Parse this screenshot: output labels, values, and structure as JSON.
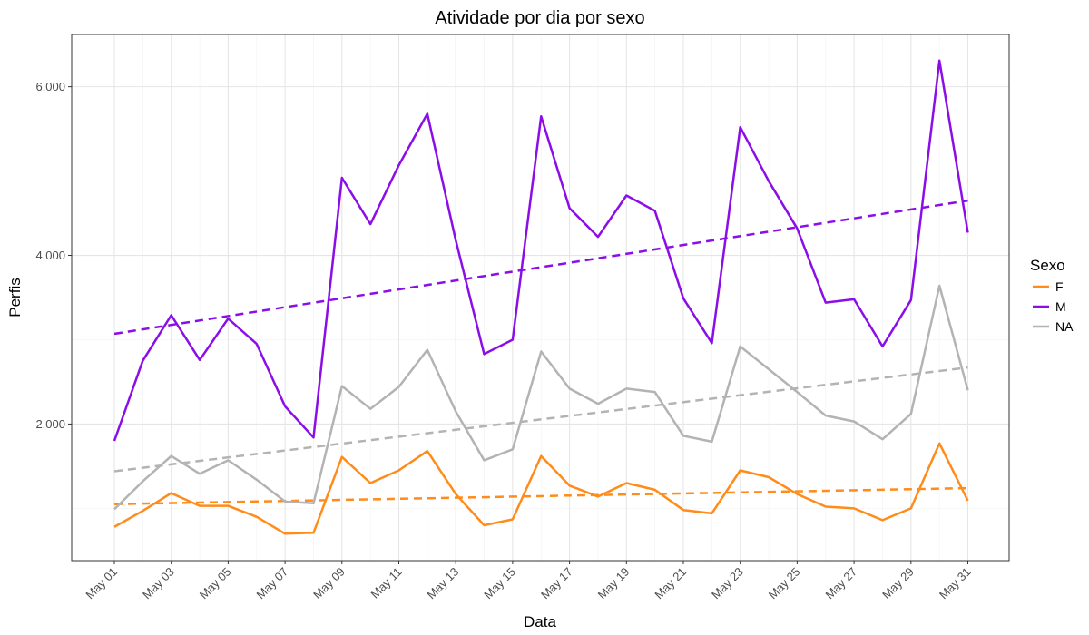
{
  "chart_data": {
    "type": "line",
    "title": "Atividade por dia por sexo",
    "xlabel": "Data",
    "ylabel": "Perfis",
    "x": [
      "May 01",
      "May 02",
      "May 03",
      "May 04",
      "May 05",
      "May 06",
      "May 07",
      "May 08",
      "May 09",
      "May 10",
      "May 11",
      "May 12",
      "May 13",
      "May 14",
      "May 15",
      "May 16",
      "May 17",
      "May 18",
      "May 19",
      "May 20",
      "May 21",
      "May 22",
      "May 23",
      "May 24",
      "May 25",
      "May 26",
      "May 27",
      "May 28",
      "May 29",
      "May 30",
      "May 31"
    ],
    "x_tick_labels": [
      "May 01",
      "May 03",
      "May 05",
      "May 07",
      "May 09",
      "May 11",
      "May 13",
      "May 15",
      "May 17",
      "May 19",
      "May 21",
      "May 23",
      "May 25",
      "May 27",
      "May 29",
      "May 31"
    ],
    "y_ticks": [
      2000,
      4000,
      6000
    ],
    "y_tick_labels": [
      "2,000",
      "4,000",
      "6,000"
    ],
    "ylim": [
      380,
      6620
    ],
    "grid": true,
    "legend": {
      "title": "Sexo",
      "position": "right"
    },
    "series": [
      {
        "name": "F",
        "color": "#ff8c1a",
        "values": [
          780,
          970,
          1180,
          1030,
          1030,
          900,
          700,
          710,
          1610,
          1300,
          1450,
          1680,
          1170,
          800,
          870,
          1620,
          1270,
          1140,
          1300,
          1220,
          980,
          940,
          1450,
          1370,
          1170,
          1020,
          1000,
          860,
          1000,
          1770,
          1090
        ],
        "trend": [
          1050,
          1240
        ]
      },
      {
        "name": "M",
        "color": "#8b0ee8",
        "values": [
          1800,
          2750,
          3290,
          2760,
          3250,
          2950,
          2210,
          1840,
          4920,
          4370,
          5070,
          5680,
          4180,
          2830,
          3000,
          5650,
          4560,
          4220,
          4710,
          4530,
          3490,
          2960,
          5520,
          4880,
          4320,
          3440,
          3480,
          2920,
          3470,
          6310,
          4270
        ],
        "trend": [
          3070,
          4650
        ]
      },
      {
        "name": "NA",
        "color": "#b3b3b3",
        "values": [
          990,
          1320,
          1620,
          1410,
          1570,
          1340,
          1080,
          1060,
          2450,
          2180,
          2440,
          2880,
          2150,
          1570,
          1700,
          2860,
          2420,
          2240,
          2420,
          2380,
          1860,
          1790,
          2920,
          2650,
          2380,
          2100,
          2030,
          1820,
          2120,
          3640,
          2400
        ],
        "trend": [
          1440,
          2670
        ]
      }
    ]
  }
}
